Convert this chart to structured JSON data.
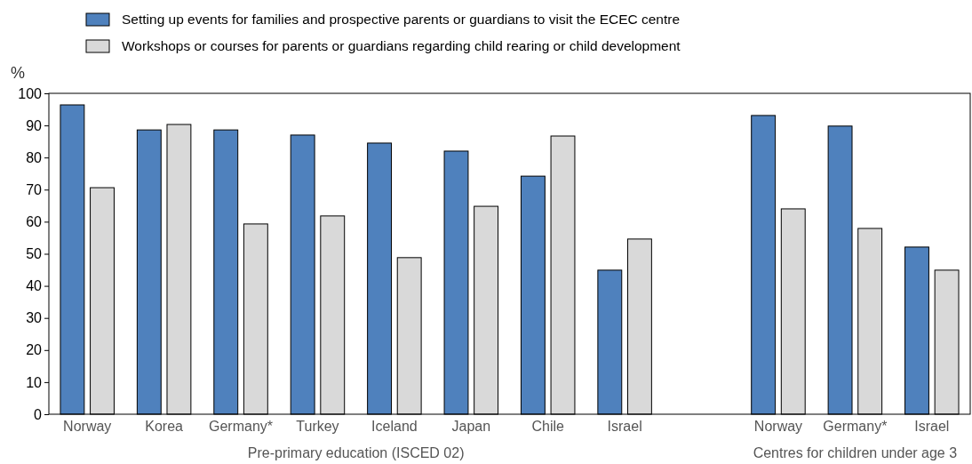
{
  "chart_data": {
    "type": "bar",
    "ylabel": "%",
    "categories": [
      "Norway",
      "Korea",
      "Germany*",
      "Turkey",
      "Iceland",
      "Japan",
      "Chile",
      "Israel",
      null,
      "Norway",
      "Germany*",
      "Israel"
    ],
    "series": [
      {
        "name": "Setting up events for families and prospective parents or guardians to visit the ECEC centre",
        "color": "#4f81bd",
        "values": [
          96.4,
          88.6,
          88.6,
          87,
          84.5,
          82,
          74.2,
          44.9,
          null,
          93.1,
          89.8,
          52.1
        ]
      },
      {
        "name": "Workshops or courses for parents or guardians regarding child rearing or child development",
        "color": "#d9d9d9",
        "values": [
          70.6,
          90.3,
          59.3,
          61.8,
          48.8,
          64.8,
          86.7,
          54.6,
          null,
          64,
          57.9,
          44.9
        ]
      }
    ],
    "ylim": [
      0,
      100
    ],
    "yticks": [
      0,
      10,
      20,
      30,
      40,
      50,
      60,
      70,
      80,
      90,
      100
    ],
    "legend": "top left",
    "annotations": [
      "Pre-primary education (ISCED 02)",
      "Centres for children under age 3"
    ]
  }
}
